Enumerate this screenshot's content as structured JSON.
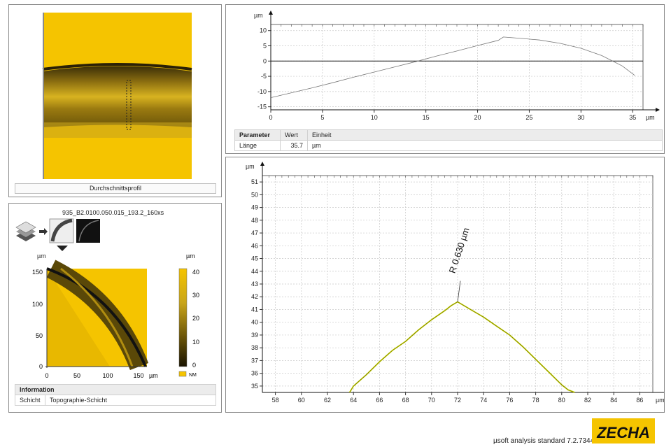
{
  "profile_panel": {
    "caption": "Durchschnittsprofil"
  },
  "topo_panel": {
    "file_name": "935_B2.0100.050.015_193.2_160xs",
    "x_unit": "µm",
    "y_unit": "µm",
    "x_ticks": [
      "0",
      "50",
      "100",
      "150"
    ],
    "y_ticks": [
      "0",
      "50",
      "100",
      "150"
    ],
    "colorbar_unit": "µm",
    "colorbar_ticks": [
      "0",
      "10",
      "20",
      "30",
      "40"
    ],
    "legend_label": "NM",
    "info_header": "Information",
    "info_row_label": "Schicht",
    "info_row_value": "Topographie-Schicht"
  },
  "params_table": {
    "headers": [
      "Parameter",
      "Wert",
      "Einheit"
    ],
    "rows": [
      [
        "Länge",
        "35.7",
        "µm"
      ]
    ]
  },
  "footer": {
    "software": "µsoft analysis standard 7.2.7344",
    "logo_text": "ZECHA"
  },
  "colors": {
    "accent_yellow": "#f5c400",
    "fit_line": "#c8d400",
    "profile_line": "#3a3a3a"
  },
  "chart_data": [
    {
      "type": "line",
      "title": "",
      "xlabel": "µm",
      "ylabel": "µm",
      "xlim": [
        0,
        36
      ],
      "ylim": [
        -16,
        12
      ],
      "x_ticks": [
        0,
        5,
        10,
        15,
        20,
        25,
        30,
        35
      ],
      "y_ticks": [
        -15,
        -10,
        -5,
        0,
        5,
        10
      ],
      "grid": true,
      "series": [
        {
          "x": [
            0,
            2,
            4,
            6,
            8,
            10,
            12,
            14,
            16,
            18,
            20,
            22,
            22.5,
            24,
            26,
            28,
            30,
            32,
            34,
            35.2
          ],
          "values": [
            -12,
            -10.4,
            -8.8,
            -7.1,
            -5.3,
            -3.6,
            -1.9,
            -0.2,
            1.6,
            3.3,
            5.1,
            6.8,
            7.9,
            7.5,
            6.9,
            5.8,
            4.2,
            1.8,
            -1.6,
            -4.7
          ]
        }
      ]
    },
    {
      "type": "line",
      "title": "",
      "xlabel": "µm",
      "ylabel": "µm",
      "xlim": [
        57,
        87
      ],
      "ylim": [
        34.5,
        51.5
      ],
      "x_ticks": [
        58,
        60,
        62,
        64,
        66,
        68,
        70,
        72,
        74,
        76,
        78,
        80,
        82,
        84,
        86
      ],
      "y_ticks": [
        35,
        36,
        37,
        38,
        39,
        40,
        41,
        42,
        43,
        44,
        45,
        46,
        47,
        48,
        49,
        50,
        51
      ],
      "grid": true,
      "annotation": "R 0.630 µm",
      "series": [
        {
          "x": [
            63.7,
            64,
            65,
            66,
            67,
            68,
            69,
            70,
            71,
            71.5,
            72,
            73,
            74,
            75,
            76,
            77,
            78,
            79,
            80,
            80.5,
            81
          ],
          "values": [
            34.5,
            35.0,
            35.9,
            36.9,
            37.8,
            38.5,
            39.4,
            40.2,
            40.9,
            41.3,
            41.6,
            41.0,
            40.4,
            39.7,
            39.0,
            38.1,
            37.1,
            36.1,
            35.1,
            34.7,
            34.5
          ]
        }
      ]
    }
  ]
}
